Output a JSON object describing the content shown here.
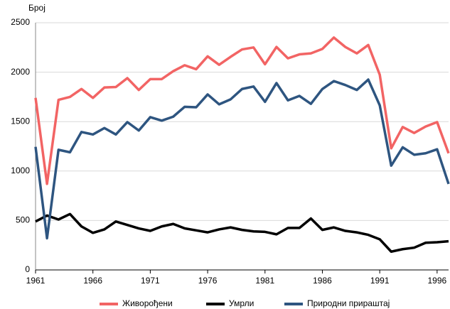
{
  "chart_data": {
    "type": "line",
    "y_label": "Број",
    "x": [
      1961,
      1962,
      1963,
      1964,
      1965,
      1966,
      1967,
      1968,
      1969,
      1970,
      1971,
      1972,
      1973,
      1974,
      1975,
      1976,
      1977,
      1978,
      1979,
      1980,
      1981,
      1982,
      1983,
      1984,
      1985,
      1986,
      1987,
      1988,
      1989,
      1990,
      1991,
      1992,
      1993,
      1994,
      1995,
      1996,
      1997
    ],
    "series": [
      {
        "name": "Живорођени",
        "color": "#f26464",
        "values": [
          1740,
          870,
          1720,
          1750,
          1830,
          1740,
          1845,
          1850,
          1940,
          1820,
          1930,
          1930,
          2010,
          2070,
          2030,
          2160,
          2075,
          2155,
          2230,
          2250,
          2080,
          2255,
          2140,
          2180,
          2190,
          2235,
          2350,
          2255,
          2190,
          2275,
          1975,
          1230,
          1445,
          1385,
          1450,
          1495,
          1180
        ]
      },
      {
        "name": "Умрли",
        "color": "#000000",
        "values": [
          490,
          550,
          510,
          565,
          440,
          375,
          410,
          490,
          455,
          420,
          395,
          440,
          465,
          420,
          400,
          380,
          410,
          430,
          405,
          390,
          385,
          360,
          425,
          425,
          520,
          405,
          430,
          395,
          380,
          355,
          310,
          185,
          210,
          225,
          275,
          280,
          290
        ]
      },
      {
        "name": "Природни прираштај",
        "color": "#2e5580",
        "values": [
          1245,
          320,
          1215,
          1190,
          1395,
          1370,
          1435,
          1370,
          1495,
          1410,
          1545,
          1510,
          1550,
          1650,
          1645,
          1775,
          1675,
          1725,
          1830,
          1855,
          1700,
          1890,
          1715,
          1760,
          1680,
          1830,
          1910,
          1870,
          1820,
          1925,
          1665,
          1055,
          1240,
          1165,
          1180,
          1220,
          870
        ]
      }
    ],
    "xlim": [
      1961,
      1997
    ],
    "xticks": [
      1961,
      1966,
      1971,
      1976,
      1981,
      1986,
      1991,
      1996
    ],
    "ylim": [
      0,
      2500
    ],
    "yticks": [
      0,
      500,
      1000,
      1500,
      2000,
      2500
    ],
    "grid": true,
    "legend": "bottom"
  }
}
